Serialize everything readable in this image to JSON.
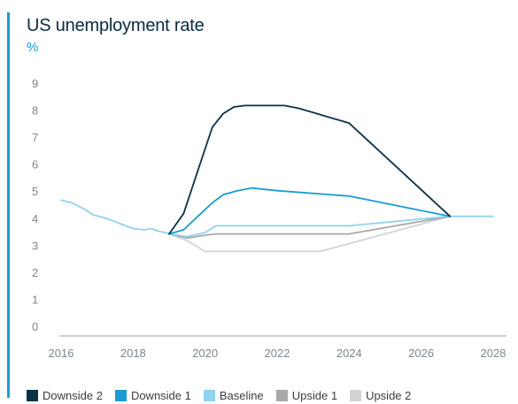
{
  "chart_data": {
    "type": "line",
    "title": "US unemployment rate",
    "ylabel": "%",
    "xlabel": "",
    "xlim": [
      2016,
      2028
    ],
    "ylim": [
      0,
      9
    ],
    "xticks": [
      "2016",
      "2018",
      "2020",
      "2022",
      "2024",
      "2026",
      "2028"
    ],
    "yticks": [
      "0",
      "1",
      "2",
      "3",
      "4",
      "5",
      "6",
      "7",
      "8",
      "9"
    ],
    "grid": false,
    "legend_position": "bottom",
    "history": {
      "color": "#8fd3ef",
      "points": [
        [
          2016,
          4.7
        ],
        [
          2016.3,
          4.6
        ],
        [
          2016.6,
          4.4
        ],
        [
          2016.9,
          4.15
        ],
        [
          2017.2,
          4.05
        ],
        [
          2017.5,
          3.9
        ],
        [
          2017.7,
          3.8
        ],
        [
          2018.0,
          3.65
        ],
        [
          2018.3,
          3.6
        ],
        [
          2018.5,
          3.65
        ],
        [
          2018.7,
          3.55
        ],
        [
          2018.9,
          3.5
        ],
        [
          2019.0,
          3.45
        ]
      ]
    },
    "series": [
      {
        "name": "Downside 2",
        "color": "#0c3147",
        "points": [
          [
            2019.0,
            3.45
          ],
          [
            2019.4,
            4.2
          ],
          [
            2019.8,
            5.8
          ],
          [
            2020.2,
            7.4
          ],
          [
            2020.5,
            7.9
          ],
          [
            2020.8,
            8.15
          ],
          [
            2021.1,
            8.2
          ],
          [
            2022.2,
            8.2
          ],
          [
            2022.6,
            8.1
          ],
          [
            2024.0,
            7.55
          ],
          [
            2026.8,
            4.1
          ]
        ]
      },
      {
        "name": "Downside 1",
        "color": "#1b9bd1",
        "points": [
          [
            2019.0,
            3.45
          ],
          [
            2019.4,
            3.6
          ],
          [
            2019.8,
            4.1
          ],
          [
            2020.2,
            4.6
          ],
          [
            2020.5,
            4.9
          ],
          [
            2020.9,
            5.05
          ],
          [
            2021.3,
            5.15
          ],
          [
            2022.0,
            5.05
          ],
          [
            2024.0,
            4.85
          ],
          [
            2026.8,
            4.1
          ]
        ]
      },
      {
        "name": "Baseline",
        "color": "#8fd3ef",
        "points": [
          [
            2019.0,
            3.45
          ],
          [
            2019.5,
            3.35
          ],
          [
            2020.0,
            3.5
          ],
          [
            2020.3,
            3.75
          ],
          [
            2024.0,
            3.75
          ],
          [
            2026.8,
            4.1
          ]
        ]
      },
      {
        "name": "Upside 1",
        "color": "#a8a8a8",
        "points": [
          [
            2019.0,
            3.45
          ],
          [
            2019.5,
            3.3
          ],
          [
            2020.0,
            3.4
          ],
          [
            2020.3,
            3.45
          ],
          [
            2024.0,
            3.45
          ],
          [
            2026.8,
            4.1
          ]
        ]
      },
      {
        "name": "Upside 2",
        "color": "#d3d3d3",
        "points": [
          [
            2019.0,
            3.45
          ],
          [
            2019.5,
            3.2
          ],
          [
            2020.0,
            2.8
          ],
          [
            2023.2,
            2.8
          ],
          [
            2026.8,
            4.1
          ]
        ]
      }
    ],
    "projection_tail": {
      "color": "#8fd3ef",
      "points": [
        [
          2026.8,
          4.1
        ],
        [
          2028.0,
          4.1
        ]
      ]
    }
  }
}
